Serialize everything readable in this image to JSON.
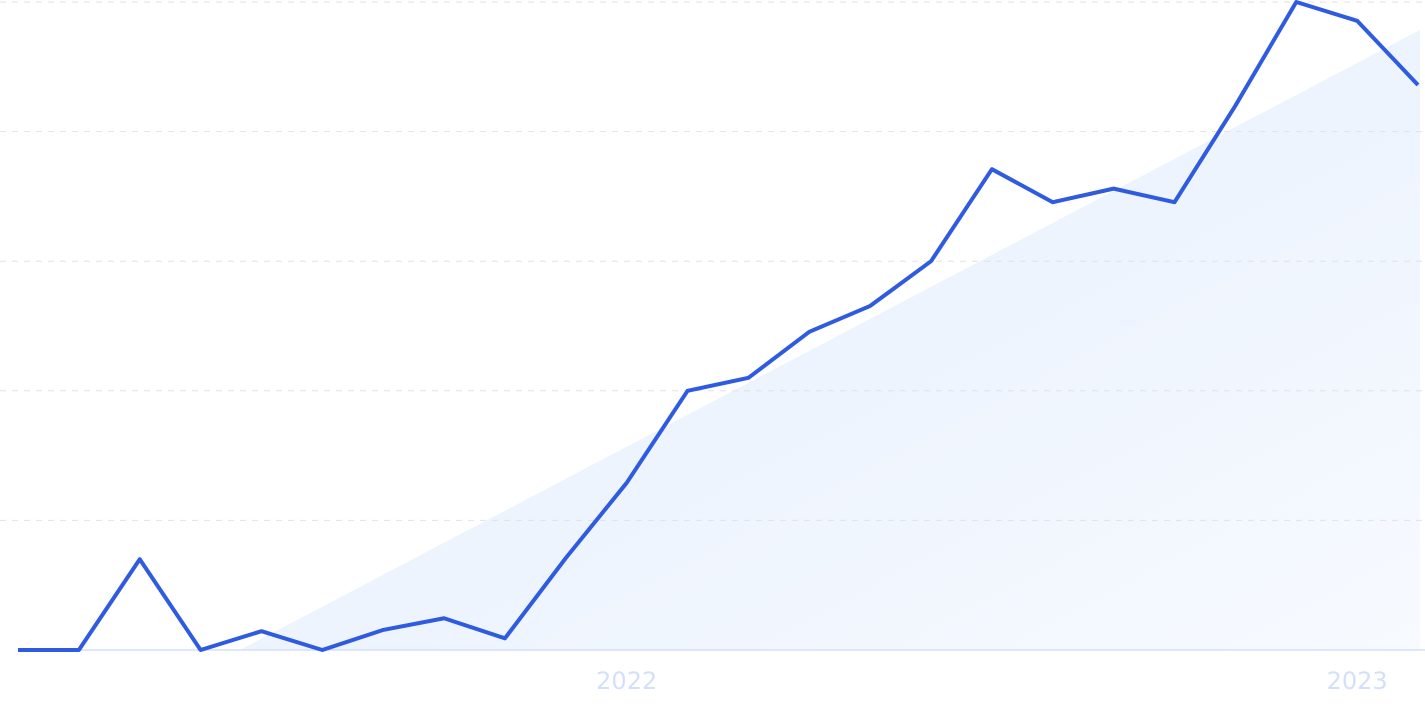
{
  "chart_data": {
    "type": "line",
    "categories": [
      null,
      null,
      null,
      null,
      null,
      null,
      null,
      null,
      null,
      null,
      "2022",
      null,
      null,
      null,
      null,
      null,
      null,
      null,
      null,
      null,
      null,
      null,
      "2023",
      null
    ],
    "series": [
      {
        "color": "#2f5be0",
        "values": [
          0,
          0,
          14,
          0,
          2.9,
          0,
          3.1,
          4.9,
          1.8,
          14.2,
          25.8,
          40,
          42,
          49.1,
          53.1,
          60,
          74.2,
          69.1,
          71.2,
          69.1,
          84,
          100,
          97.1,
          87.2
        ]
      }
    ],
    "ylim": [
      0,
      100
    ],
    "gridlines": [
      0,
      20,
      40,
      60,
      80,
      100
    ],
    "grid": true
  }
}
